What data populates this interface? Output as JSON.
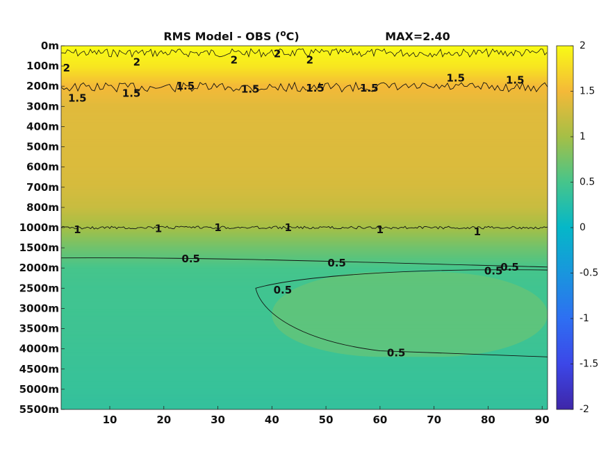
{
  "chart_data": {
    "type": "heatmap",
    "title": "RMS Model - OBS (",
    "title_unit": "o",
    "title_unit_suffix": "C)",
    "max_label": "MAX=2.40",
    "y_ticks": [
      "0m",
      "100m",
      "200m",
      "300m",
      "400m",
      "500m",
      "600m",
      "700m",
      "800m",
      "1000m",
      "1500m",
      "2000m",
      "2500m",
      "3000m",
      "3500m",
      "4000m",
      "4500m",
      "5000m",
      "5500m"
    ],
    "x_ticks": [
      10,
      20,
      30,
      40,
      50,
      60,
      70,
      80,
      90
    ],
    "xlim": [
      1,
      91
    ],
    "colorbar": {
      "range": [
        -2,
        2
      ],
      "ticks": [
        "2",
        "1.5",
        "1",
        "0.5",
        "0",
        "-0.5",
        "-1",
        "-1.5",
        "-2"
      ]
    },
    "profile": [
      {
        "depth": "0m",
        "value": 2.0
      },
      {
        "depth": "100m",
        "value": 1.85
      },
      {
        "depth": "200m",
        "value": 1.5
      },
      {
        "depth": "300m",
        "value": 1.38
      },
      {
        "depth": "400m",
        "value": 1.36
      },
      {
        "depth": "500m",
        "value": 1.35
      },
      {
        "depth": "600m",
        "value": 1.34
      },
      {
        "depth": "700m",
        "value": 1.3
      },
      {
        "depth": "800m",
        "value": 1.22
      },
      {
        "depth": "1000m",
        "value": 1.0
      },
      {
        "depth": "1500m",
        "value": 0.72
      },
      {
        "depth": "2000m",
        "value": 0.5
      },
      {
        "depth": "2500m",
        "value": 0.46
      },
      {
        "depth": "3000m",
        "value": 0.45
      },
      {
        "depth": "3500m",
        "value": 0.44
      },
      {
        "depth": "4000m",
        "value": 0.42
      },
      {
        "depth": "4500m",
        "value": 0.4
      },
      {
        "depth": "5000m",
        "value": 0.38
      },
      {
        "depth": "5500m",
        "value": 0.36
      }
    ],
    "contour_labels": [
      {
        "text": "2",
        "x": 2,
        "depth": 1.1
      },
      {
        "text": "2",
        "x": 15,
        "depth": 0.8
      },
      {
        "text": "2",
        "x": 33,
        "depth": 0.7
      },
      {
        "text": "2",
        "x": 41,
        "depth": 0.4
      },
      {
        "text": "2",
        "x": 47,
        "depth": 0.7
      },
      {
        "text": "1.5",
        "x": 4,
        "depth": 2.6
      },
      {
        "text": "1.5",
        "x": 14,
        "depth": 2.35
      },
      {
        "text": "1.5",
        "x": 24,
        "depth": 2.0
      },
      {
        "text": "1.5",
        "x": 36,
        "depth": 2.15
      },
      {
        "text": "1.5",
        "x": 48,
        "depth": 2.1
      },
      {
        "text": "1.5",
        "x": 58,
        "depth": 2.1
      },
      {
        "text": "1.5",
        "x": 74,
        "depth": 1.6
      },
      {
        "text": "1.5",
        "x": 85,
        "depth": 1.7
      },
      {
        "text": "1",
        "x": 4,
        "depth": 9.1
      },
      {
        "text": "1",
        "x": 19,
        "depth": 9.05
      },
      {
        "text": "1",
        "x": 30,
        "depth": 9.0
      },
      {
        "text": "1",
        "x": 43,
        "depth": 9.0
      },
      {
        "text": "1",
        "x": 60,
        "depth": 9.1
      },
      {
        "text": "1",
        "x": 78,
        "depth": 9.2
      },
      {
        "text": "0.5",
        "x": 25,
        "depth": 10.55
      },
      {
        "text": "0.5",
        "x": 52,
        "depth": 10.75
      },
      {
        "text": "0.5",
        "x": 81,
        "depth": 11.15
      },
      {
        "text": "0.5",
        "x": 84,
        "depth": 10.95
      },
      {
        "text": "0.5",
        "x": 42,
        "depth": 12.1
      },
      {
        "text": "0.5",
        "x": 63,
        "depth": 15.2
      }
    ]
  }
}
